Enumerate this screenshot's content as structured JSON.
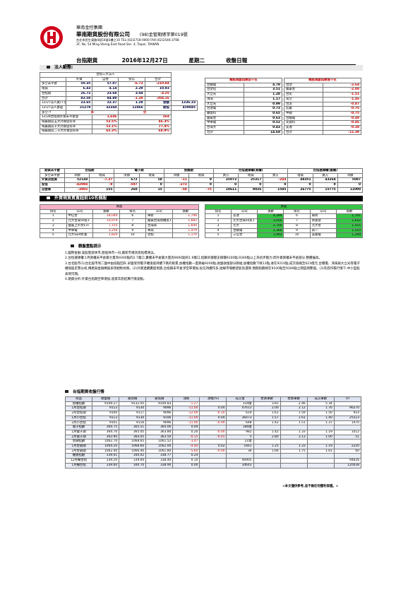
{
  "header": {
    "org": "華南金控集團",
    "company": "華南期貨股份有限公司",
    "license": "(98)金管期總字第019號",
    "address_cn": "台北市民生東路4段54號3樓之10 TEL:(02)2718-0000 FAX:(02)2546-3708",
    "address_en": "3F, No. 54 Ming Sheng East Road Sec. 4, Taipei, TAIWAN",
    "report": "台指期貨",
    "date": "2016年12月27日",
    "weekday": "星期二",
    "report_type": "收盤日報"
  },
  "institutional": {
    "section_title": "法人動態:",
    "table_title": "台指三大法人",
    "top_cols": [
      "",
      "外資",
      "自營",
      "投信",
      "合計"
    ],
    "rows": [
      {
        "label": "多空未平倉",
        "values": [
          "50.35",
          "57.07",
          "-6.72",
          "-210.84"
        ]
      },
      {
        "label": "增減",
        "values": [
          "6.43",
          "4.14",
          "2.29",
          "10.93"
        ]
      },
      {
        "label": "台指期",
        "values": [
          "26.72",
          "23.68",
          "3.04",
          "-4.25"
        ]
      },
      {
        "label": "合計",
        "values": [
          "83.50",
          "84.89",
          "-1.38",
          "-204.16"
        ]
      }
    ],
    "rows2": [
      {
        "label": "12/27法人買(+)賣",
        "values": [
          "23.65",
          "22.37",
          "1.28",
          "金額",
          "1336.33"
        ]
      },
      {
        "label": "12/27法人賣超",
        "values": [
          "21278",
          "32344",
          "11066",
          "期指",
          "459845"
        ]
      }
    ],
    "mood": {
      "label": "多空:↑",
      "values": [
        "多",
        "",
        "空"
      ]
    },
    "stats": [
      {
        "label": "12/28台指期外資未平倉量",
        "v1": "1,646",
        "v2": "264"
      },
      {
        "label": "每屬期前五大外資佔有率",
        "v1": "53.5%",
        "v2": "46.3%"
      },
      {
        "label": "每屬期前十大外資佔有率",
        "v1": "53.1%",
        "v2": "77.4%"
      },
      {
        "label": "每屬期前二十大外資佔有率",
        "v1": "65.3%",
        "v2": "68.9%"
      }
    ],
    "pos_title": "類股貢獻指數前十名",
    "neg_title": "類股貢獻指數後十名",
    "pos": [
      {
        "name": "台積電",
        "value": "4.78"
      },
      {
        "name": "台塑化",
        "value": "3.51"
      },
      {
        "name": "大立光",
        "value": "1.28"
      },
      {
        "name": "鴻海",
        "value": "1.17"
      },
      {
        "name": "大立光",
        "value": "0.99"
      },
      {
        "name": "台達電",
        "value": "0.73"
      },
      {
        "name": "聯發科",
        "value": "0.65"
      },
      {
        "name": "國泰金",
        "value": "0.63"
      },
      {
        "name": "中華電",
        "value": "0.52"
      },
      {
        "name": "台灣大",
        "value": "0.43"
      },
      {
        "name": "合計",
        "value": "14.68"
      }
    ],
    "neg": [
      {
        "name": "台塑",
        "value": "-2.64"
      },
      {
        "name": "國泰金",
        "value": "-2.08"
      },
      {
        "name": "台化",
        "value": "-1.51"
      },
      {
        "name": "南亞",
        "value": "-1.46"
      },
      {
        "name": "台泥",
        "value": "-0.87"
      },
      {
        "name": "宏碁",
        "value": "-0.76"
      },
      {
        "name": "中鋼",
        "value": "-0.75"
      },
      {
        "name": "台積電",
        "value": "-0.48"
      },
      {
        "name": "光寶科",
        "value": "-0.46"
      },
      {
        "name": "友達",
        "value": "-0.38"
      },
      {
        "name": "合計",
        "value": "-11.39"
      }
    ]
  },
  "futures_oi": {
    "headers": [
      "期貨未平倉",
      "台指期",
      "",
      "電子期",
      "",
      "金融期",
      "",
      "台指選擇權(買權)",
      "",
      "",
      "台指選擇權(賣權)",
      "",
      ""
    ],
    "sub": [
      "多空未平倉",
      "淨額",
      "增減",
      "淨額",
      "增減",
      "淨額",
      "增減",
      "買方",
      "增減",
      "賣方",
      "增減",
      "買方",
      "淨額"
    ],
    "rows": [
      [
        "外資及陸資",
        "52148",
        "-7.37",
        "672",
        "58",
        "-11",
        "9",
        "25073",
        "25317",
        "-244",
        "48351",
        "43264",
        "5087"
      ],
      [
        "投信",
        "-42094",
        "-9",
        "-507",
        "0",
        "-273",
        "0",
        "0",
        "0",
        "0",
        "0",
        "0",
        "0"
      ],
      [
        "自營商",
        "-3002",
        "155",
        "260",
        "15",
        "-58",
        "-75",
        "10611",
        "9026",
        "1585",
        "26775",
        "15775",
        "11000"
      ]
    ]
  },
  "active": {
    "section_title": "外資現貨買賣超前10名個股",
    "buy_title": "買超",
    "sell_title": "賣超",
    "cols": [
      "排名",
      "公司",
      "張數",
      "排名",
      "公司",
      "張數"
    ],
    "buy": [
      [
        "1",
        "中信金",
        "18,040",
        "6",
        "華新",
        "1,746"
      ],
      [
        "2",
        "元大台灣50反1",
        "10,979",
        "7",
        "國泰台灣加權反1",
        "1,682"
      ],
      [
        "3",
        "國泰上市文ETF",
        "7,155",
        "8",
        "台灣高",
        "1,640"
      ],
      [
        "4",
        "中華電",
        "3,256",
        "9",
        "華南",
        "1,479"
      ],
      [
        "5",
        "元大S&P原油",
        "1,820",
        "10",
        "台指",
        "1,170"
      ]
    ],
    "sell": [
      [
        "1",
        "友達",
        "4,289",
        "6",
        "陽明",
        "1,701"
      ],
      [
        "2",
        "元大台灣50反1",
        "3,004",
        "7",
        "興富發",
        "1,642"
      ],
      [
        "3",
        "元大",
        "2,700",
        "8",
        "元大金",
        "1,555"
      ],
      [
        "4",
        "台積電",
        "2,369",
        "9",
        "南一",
        "1,510"
      ],
      [
        "5",
        "三信金",
        "1,993",
        "10",
        "美國電",
        "1,299"
      ]
    ]
  },
  "analysis": {
    "title": "觀盤重點提示",
    "points": [
      "1.國際金融:美股聖誕休市,歐股休市一日,最新市場消息指標清淡。",
      "2.台指選擇權:1月買權未平倉最大量為9300點的2.7萬口,賣權未平倉最大量為9000點的1.9萬口,指數的撐壓支撐價9100點,9300點以上為初步壓力;而外資買權未平倉部分,整體偏高。",
      "3.台北股市(1)台北股市周二盤中由低點回升,早盤受到電子權值股持續下跌的拖累,加權指數一度跌破9200點,收盤收復部分跌幅,加權指數下跌13點,收在9210點,成交值縮至623億元,台積電、鴻海與大立光等電子權值股走勢分歧,傳產與金融類股表現相對抗跌。(2)外資連續賣超現貨,台指期未平倉淨空單增加,投信持續作多,短線市場觀望氣氛濃厚,預期指數將在9100點至9300點之間區間整理。(3)年底作帳行情下,中小型股表現可期。",
      "4.期貨分析:外資台指期空單增加,留意年底結算行情波動。"
    ]
  },
  "quotes": {
    "section_title": "台指期貨收盤行情",
    "cols": [
      "商品",
      "收盤價",
      "最高價",
      "最低價",
      "漲跌",
      "漲幅(%)",
      "成交量",
      "委買筆數",
      "委賣筆數",
      "成交筆數",
      "OI"
    ],
    "rows": [
      [
        "加權指數",
        "9109.27",
        "9132.05",
        "9100.83",
        "-1.27",
        "",
        "334億",
        "3.81",
        "2.46",
        "5.34",
        ""
      ],
      [
        "1月台指期",
        "9113",
        "9130",
        "9096",
        "-11.00",
        "0.04",
        "47613",
        "2.00",
        "2.12",
        "1.76",
        "96270"
      ],
      [
        "2月台指期",
        "9100",
        "9117",
        "9096",
        "-12.00",
        "-0.10",
        "619",
        "1.61",
        "1.59",
        "1.50",
        "914"
      ],
      [
        "1月小台指",
        "9113",
        "9130",
        "9106",
        "-11.00",
        "0.04",
        "36473",
        "1.57",
        "1.61",
        "1.40",
        "25523"
      ],
      [
        "2月小台指",
        "9101",
        "9116",
        "9096",
        "-11.00",
        "-0.09",
        "648",
        "1.42",
        "1.51",
        "1.37",
        "1470"
      ],
      [
        "電子指數",
        "364.75",
        "365.51",
        "364.06",
        "0.49",
        "",
        "186億",
        "",
        "",
        "",
        ""
      ],
      [
        "1月電子期",
        "364.70",
        "365.05",
        "363.80",
        "0.20",
        "-0.00",
        "981",
        "1.42",
        "1.33",
        "1.19",
        "3512"
      ],
      [
        "2月電子期",
        "363.90",
        "364.05",
        "363.50",
        "-0.15",
        "-0.01",
        "5",
        "2.80",
        "3.13",
        "1.00",
        "51"
      ],
      [
        "金融指數",
        "1062.70",
        "1068.65",
        "1061.52",
        "-3.47",
        "",
        "21億",
        "",
        "",
        "",
        ""
      ],
      [
        "1月金融期",
        "1064.20",
        "1068.60",
        "1062.00",
        "-4.40",
        "0.02",
        "1661",
        "1.25",
        "1.33",
        "1.19",
        "2220"
      ],
      [
        "2月金融期",
        "1062.40",
        "1066.40",
        "1061.80",
        "-5.60",
        "-0.00",
        "36",
        "1.66",
        "1.75",
        "1.61",
        "60"
      ],
      [
        "櫃買指數",
        "339.41",
        "340.02",
        "338.77",
        "0.24",
        "",
        "",
        "",
        "",
        "",
        ""
      ],
      [
        "12月櫃台指",
        "339.20",
        "339.60",
        "338.40",
        "0.10",
        "",
        "40905",
        "",
        "",
        "",
        "94626"
      ],
      [
        "1月櫃台指",
        "339.60",
        "340.70",
        "338.90",
        "0.00",
        "",
        "34643",
        "",
        "",
        "",
        "120038"
      ]
    ]
  },
  "footer": "<本文僅供參考,並不做任何獲利保證。>",
  "colors": {
    "buy_header": "#f6b1c6",
    "sell_header": "#36c646",
    "negative": "#cc0000"
  }
}
